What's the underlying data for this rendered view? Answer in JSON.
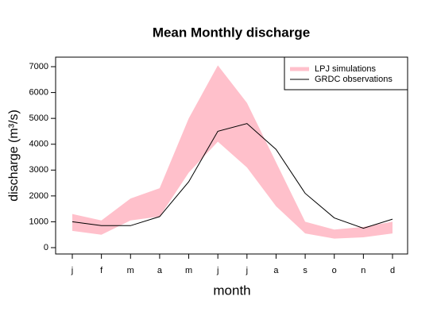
{
  "chart_data": {
    "type": "band-line",
    "title": "Mean Monthly discharge",
    "x_label": "month",
    "y_label": "discharge (m³/s)",
    "categories": [
      "j",
      "f",
      "m",
      "a",
      "m",
      "j",
      "j",
      "a",
      "s",
      "o",
      "n",
      "d"
    ],
    "series": [
      {
        "name": "LPJ simulations",
        "color": "#ffc0cb",
        "upper": [
          1300,
          1050,
          1900,
          2300,
          5000,
          7050,
          5600,
          3300,
          1000,
          700,
          800,
          1000
        ],
        "lower": [
          650,
          500,
          1050,
          1200,
          2900,
          4100,
          3100,
          1600,
          550,
          350,
          400,
          550
        ]
      },
      {
        "name": "GRDC observations",
        "color": "#000000",
        "values": [
          1000,
          850,
          850,
          1200,
          2550,
          4500,
          4800,
          3800,
          2100,
          1150,
          750,
          1100
        ]
      }
    ],
    "ylim": [
      -246,
      7369
    ],
    "yticks": [
      0,
      1000,
      2000,
      3000,
      4000,
      5000,
      6000,
      7000
    ],
    "legend": "top-right"
  }
}
